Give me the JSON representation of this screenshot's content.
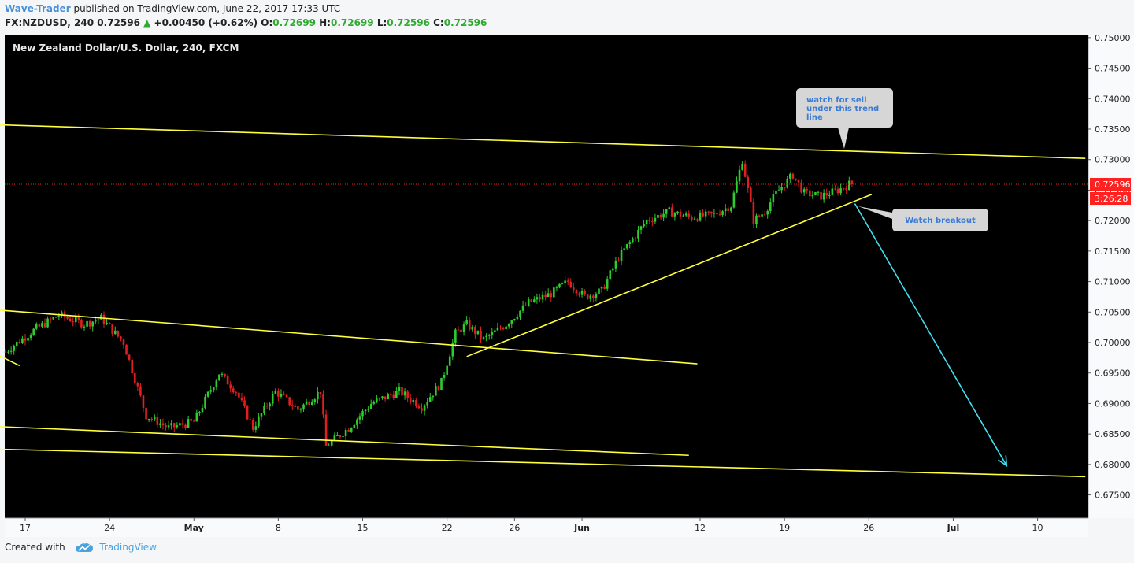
{
  "header": {
    "author": "Wave-Trader",
    "published_text": "published on TradingView.com, June 22, 2017 17:33 UTC",
    "symbol": "FX:NZDUSD, 240",
    "last": "0.72596",
    "change": "+0.00450 (+0.62%)",
    "o_label": "O:",
    "o_value": "0.72699",
    "h_label": "H:",
    "h_value": "0.72699",
    "l_label": "L:",
    "l_value": "0.72596",
    "c_label": "C:",
    "c_value": "0.72596"
  },
  "footer": {
    "created_with": "Created with",
    "brand": "TradingView"
  },
  "colors": {
    "background": "#000000",
    "bull": "#2ecc2e",
    "bear": "#e02020",
    "trendline": "#ffff3b",
    "arrow": "#40e0f0",
    "price_label": "#ff2020",
    "callout_bg": "#d6d6d6",
    "callout_text": "#3a7bd5"
  },
  "chart_data": {
    "type": "candlestick",
    "title": "New Zealand Dollar/U.S. Dollar, 240, FXCM",
    "ylim": [
      0.6712,
      0.7505
    ],
    "y_ticks": [
      "0.75000",
      "0.74500",
      "0.74000",
      "0.73500",
      "0.73000",
      "0.72500",
      "0.72000",
      "0.71500",
      "0.71000",
      "0.70500",
      "0.70000",
      "0.69500",
      "0.69000",
      "0.68500",
      "0.68000",
      "0.67500"
    ],
    "y_tick_values": [
      0.75,
      0.745,
      0.74,
      0.735,
      0.73,
      0.725,
      0.72,
      0.715,
      0.71,
      0.705,
      0.7,
      0.695,
      0.69,
      0.685,
      0.68,
      0.675
    ],
    "x_ticks": [
      {
        "label": "17",
        "bold": false,
        "bar": 7
      },
      {
        "label": "24",
        "bold": false,
        "bar": 37
      },
      {
        "label": "May",
        "bold": true,
        "bar": 67
      },
      {
        "label": "8",
        "bold": false,
        "bar": 97
      },
      {
        "label": "15",
        "bold": false,
        "bar": 127
      },
      {
        "label": "22",
        "bold": false,
        "bar": 157
      },
      {
        "label": "26",
        "bold": false,
        "bar": 181
      },
      {
        "label": "Jun",
        "bold": true,
        "bar": 205
      },
      {
        "label": "12",
        "bold": false,
        "bar": 247
      },
      {
        "label": "19",
        "bold": false,
        "bar": 277
      },
      {
        "label": "26",
        "bold": false,
        "bar": 307
      },
      {
        "label": "Jul",
        "bold": true,
        "bar": 337
      },
      {
        "label": "10",
        "bold": false,
        "bar": 367
      }
    ],
    "current_price": "0.72596",
    "current_value": 0.72596,
    "countdown": "3:26:28",
    "anchors": [
      [
        0,
        0.6985
      ],
      [
        10,
        0.702
      ],
      [
        19,
        0.7045
      ],
      [
        28,
        0.703
      ],
      [
        34,
        0.704
      ],
      [
        42,
        0.7
      ],
      [
        50,
        0.688
      ],
      [
        58,
        0.686
      ],
      [
        67,
        0.687
      ],
      [
        76,
        0.695
      ],
      [
        82,
        0.692
      ],
      [
        88,
        0.686
      ],
      [
        96,
        0.692
      ],
      [
        104,
        0.689
      ],
      [
        112,
        0.692
      ],
      [
        114,
        0.683
      ],
      [
        122,
        0.686
      ],
      [
        130,
        0.69
      ],
      [
        140,
        0.692
      ],
      [
        148,
        0.6895
      ],
      [
        155,
        0.6935
      ],
      [
        160,
        0.7015
      ],
      [
        164,
        0.703
      ],
      [
        170,
        0.7005
      ],
      [
        178,
        0.703
      ],
      [
        186,
        0.7065
      ],
      [
        194,
        0.708
      ],
      [
        200,
        0.71
      ],
      [
        206,
        0.7075
      ],
      [
        212,
        0.7085
      ],
      [
        218,
        0.714
      ],
      [
        228,
        0.72
      ],
      [
        236,
        0.7215
      ],
      [
        244,
        0.7205
      ],
      [
        252,
        0.721
      ],
      [
        258,
        0.7225
      ],
      [
        262,
        0.73
      ],
      [
        266,
        0.72
      ],
      [
        270,
        0.7215
      ],
      [
        274,
        0.7245
      ],
      [
        280,
        0.7275
      ],
      [
        284,
        0.7245
      ],
      [
        290,
        0.724
      ],
      [
        296,
        0.725
      ],
      [
        301,
        0.7262
      ]
    ],
    "trendlines": [
      {
        "from": [
          -2,
          0.7357
        ],
        "to": [
          384,
          0.7302
        ]
      },
      {
        "from": [
          -2,
          0.7053
        ],
        "to": [
          246,
          0.6965
        ]
      },
      {
        "from": [
          -2,
          0.6978
        ],
        "to": [
          5,
          0.6962
        ]
      },
      {
        "from": [
          164,
          0.6977
        ],
        "to": [
          308,
          0.7243
        ]
      },
      {
        "from": [
          -2,
          0.6862
        ],
        "to": [
          243,
          0.6815
        ]
      },
      {
        "from": [
          -2,
          0.6825
        ],
        "to": [
          384,
          0.678
        ]
      }
    ],
    "projection_arrow": {
      "from": [
        302,
        0.7228
      ],
      "to": [
        356,
        0.6798
      ]
    },
    "annotations": [
      {
        "text": "watch for sell under this trend line"
      },
      {
        "text": "Watch breakout"
      }
    ]
  }
}
